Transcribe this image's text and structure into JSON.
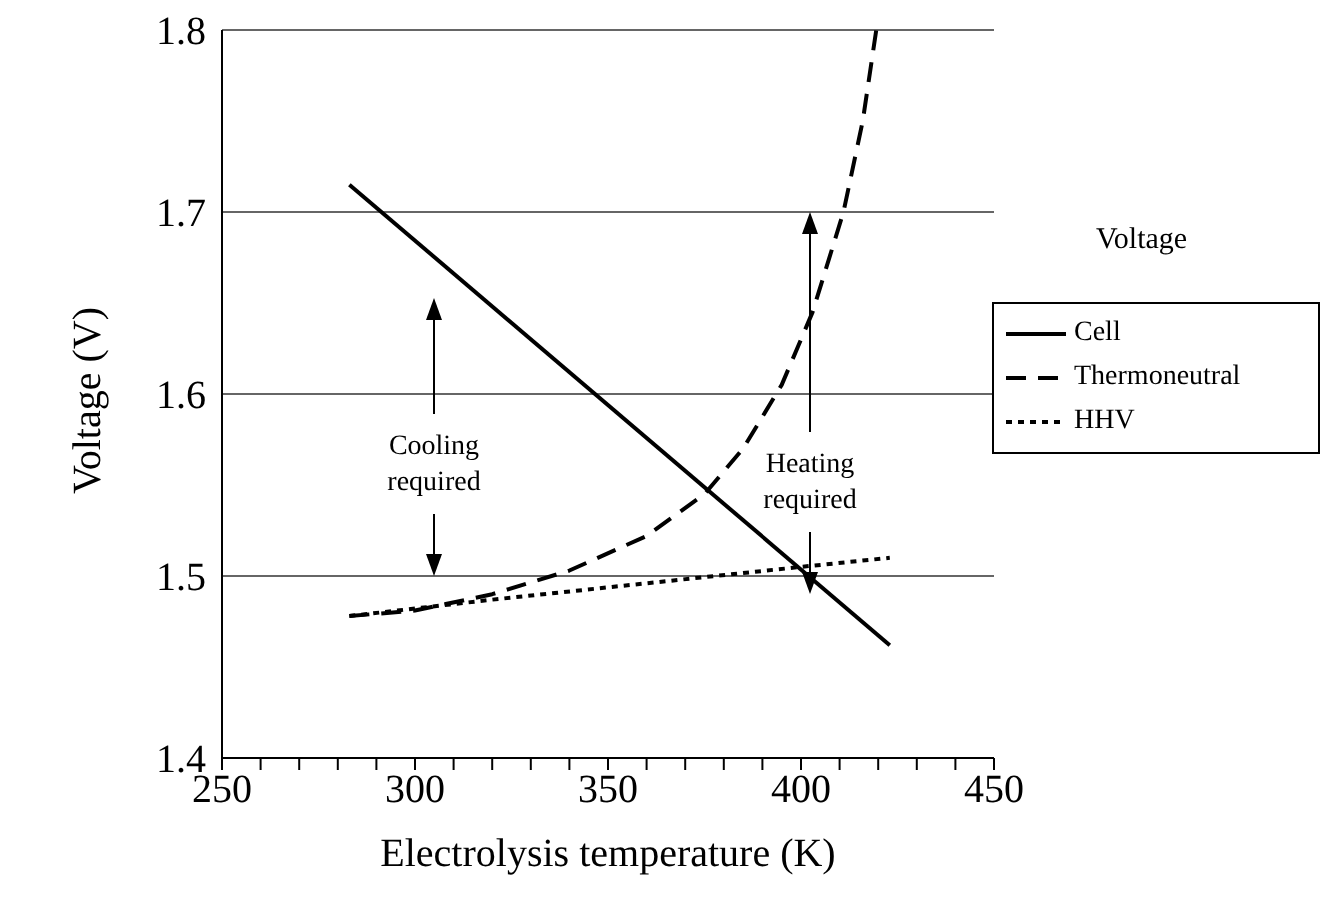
{
  "chart_data": {
    "type": "line",
    "title": "Voltage",
    "xlabel": "Electrolysis temperature (K)",
    "ylabel": "Voltage (V)",
    "xlim": [
      250,
      450
    ],
    "xticks": [
      250,
      {
        "value": 260,
        "label": null
      },
      {
        "value": 270,
        "label": null
      },
      {
        "value": 280,
        "label": null
      },
      {
        "value": 290,
        "label": null
      },
      300,
      {
        "value": 310,
        "label": null
      },
      {
        "value": 320,
        "label": null
      },
      {
        "value": 330,
        "label": null
      },
      {
        "value": 340,
        "label": null
      },
      350,
      {
        "value": 360,
        "label": null
      },
      {
        "value": 370,
        "label": null
      },
      {
        "value": 380,
        "label": null
      },
      {
        "value": 390,
        "label": null
      },
      400,
      {
        "value": 410,
        "label": null
      },
      {
        "value": 420,
        "label": null
      },
      {
        "value": 430,
        "label": null
      },
      {
        "value": 440,
        "label": null
      },
      450
    ],
    "ylim": [
      1.4,
      1.8
    ],
    "yticks": [
      1.4,
      1.5,
      1.6,
      1.7,
      1.8
    ],
    "grid": "y",
    "legend": "right",
    "marker": "none",
    "series": [
      {
        "name": "Cell",
        "color": "#000000",
        "line_style": "solid",
        "x": [
          283,
          423
        ],
        "values": [
          1.715,
          1.462
        ]
      },
      {
        "name": "Thermoneutral",
        "color": "#000000",
        "line_style": "dashed",
        "x": [
          283,
          300,
          320,
          340,
          360,
          375,
          385,
          395,
          403,
          411,
          416,
          419.5
        ],
        "values": [
          1.478,
          1.481,
          1.49,
          1.503,
          1.522,
          1.545,
          1.57,
          1.605,
          1.645,
          1.7,
          1.75,
          1.8
        ]
      },
      {
        "name": "HHV",
        "color": "#000000",
        "line_style": "dotted",
        "x": [
          283,
          320,
          360,
          400,
          423
        ],
        "values": [
          1.478,
          1.487,
          1.496,
          1.505,
          1.51
        ]
      }
    ],
    "annotations": [
      "Cooling required",
      "Heating required"
    ]
  }
}
